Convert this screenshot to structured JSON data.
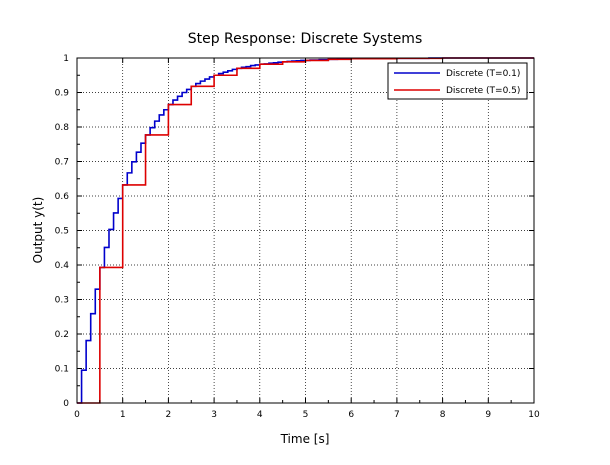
{
  "chart_data": {
    "type": "line",
    "title": "Step Response: Discrete Systems",
    "xlabel": "Time [s]",
    "ylabel": "Output y(t)",
    "xlim": [
      0,
      10
    ],
    "ylim": [
      0,
      1
    ],
    "xticks": [
      0,
      1,
      2,
      3,
      4,
      5,
      6,
      7,
      8,
      9,
      10
    ],
    "yticks": [
      0,
      0.1,
      0.2,
      0.3,
      0.4,
      0.5,
      0.6,
      0.7,
      0.8,
      0.9,
      1
    ],
    "xtick_labels": [
      "0",
      "1",
      "2",
      "3",
      "4",
      "5",
      "6",
      "7",
      "8",
      "9",
      "10"
    ],
    "ytick_labels": [
      "0",
      "0.1",
      "0.2",
      "0.3",
      "0.4",
      "0.5",
      "0.6",
      "0.7",
      "0.8",
      "0.9",
      "1"
    ],
    "grid": true,
    "grid_style": "dotted",
    "legend_position": "top-right",
    "series": [
      {
        "name": "Discrete (T=0.1)",
        "color": "#0000cc",
        "step": "post",
        "x": [
          0,
          0.1,
          0.2,
          0.3,
          0.4,
          0.5,
          0.6,
          0.7,
          0.8,
          0.9,
          1.0,
          1.1,
          1.2,
          1.3,
          1.4,
          1.5,
          1.6,
          1.7,
          1.8,
          1.9,
          2.0,
          2.1,
          2.2,
          2.3,
          2.4,
          2.5,
          2.6,
          2.7,
          2.8,
          2.9,
          3.0,
          3.1,
          3.2,
          3.3,
          3.4,
          3.5,
          3.6,
          3.7,
          3.8,
          3.9,
          4.0,
          4.1,
          4.2,
          4.3,
          4.4,
          4.5,
          4.6,
          4.7,
          4.8,
          4.9,
          5.0,
          5.1,
          5.2,
          5.3,
          5.4,
          5.5,
          5.6,
          5.7,
          5.8,
          5.9,
          6.0,
          6.1,
          6.2,
          6.3,
          6.4,
          6.5,
          6.6,
          6.7,
          6.8,
          6.9,
          7.0,
          7.1,
          7.2,
          7.3,
          7.4,
          7.5,
          7.6,
          7.7,
          7.8,
          7.9,
          8.0,
          8.1,
          8.2,
          8.3,
          8.4,
          8.5,
          8.6,
          8.7,
          8.8,
          8.9,
          9.0,
          9.1,
          9.2,
          9.3,
          9.4,
          9.5,
          9.6,
          9.7,
          9.8,
          9.9,
          10.0
        ],
        "y": [
          0,
          0.095,
          0.181,
          0.259,
          0.33,
          0.393,
          0.451,
          0.503,
          0.551,
          0.593,
          0.632,
          0.667,
          0.699,
          0.727,
          0.753,
          0.777,
          0.798,
          0.817,
          0.835,
          0.85,
          0.865,
          0.878,
          0.889,
          0.9,
          0.909,
          0.918,
          0.926,
          0.933,
          0.939,
          0.945,
          0.95,
          0.955,
          0.959,
          0.963,
          0.967,
          0.97,
          0.973,
          0.975,
          0.978,
          0.98,
          0.982,
          0.983,
          0.985,
          0.986,
          0.988,
          0.989,
          0.99,
          0.991,
          0.992,
          0.993,
          0.993,
          0.994,
          0.994,
          0.995,
          0.995,
          0.996,
          0.996,
          0.997,
          0.997,
          0.997,
          0.998,
          0.998,
          0.998,
          0.998,
          0.998,
          0.998,
          0.999,
          0.999,
          0.999,
          0.999,
          0.999,
          0.999,
          0.999,
          0.999,
          0.999,
          0.999,
          0.999,
          1.0,
          1.0,
          1.0,
          1.0,
          1.0,
          1.0,
          1.0,
          1.0,
          1.0,
          1.0,
          1.0,
          1.0,
          1.0,
          1.0,
          1.0,
          1.0,
          1.0,
          1.0,
          1.0,
          1.0,
          1.0,
          1.0,
          1.0,
          1.0
        ]
      },
      {
        "name": "Discrete (T=0.5)",
        "color": "#dd0000",
        "step": "post",
        "x": [
          0,
          0.5,
          1.0,
          1.5,
          2.0,
          2.5,
          3.0,
          3.5,
          4.0,
          4.5,
          5.0,
          5.5,
          6.0,
          6.5,
          7.0,
          7.5,
          8.0,
          8.5,
          9.0,
          9.5,
          10.0
        ],
        "y": [
          0,
          0.393,
          0.632,
          0.777,
          0.865,
          0.918,
          0.95,
          0.97,
          0.982,
          0.989,
          0.993,
          0.996,
          0.998,
          0.998,
          0.999,
          0.999,
          1.0,
          1.0,
          1.0,
          1.0,
          1.0
        ]
      }
    ]
  }
}
